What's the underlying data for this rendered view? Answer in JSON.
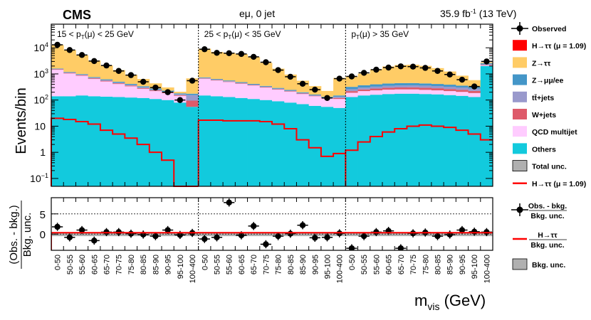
{
  "chart_data": {
    "type": "bar",
    "header": {
      "experiment": "CMS",
      "channel": "eμ, 0 jet",
      "lumi": "35.9 fb",
      "lumi_sup": "-1",
      "energy": "(13 TeV)"
    },
    "ylabel": "Events/bin",
    "ratio_ylabel_num": "(Obs. - bkg.)",
    "ratio_ylabel_den": "Bkg. unc.",
    "xlabel_main": "m",
    "xlabel_sub": "vis",
    "xlabel_unit": " (GeV)",
    "y_ticks": [
      {
        "value": 0.1,
        "label": "10",
        "sup": "−1"
      },
      {
        "value": 1,
        "label": "1",
        "sup": ""
      },
      {
        "value": 10,
        "label": "10",
        "sup": ""
      },
      {
        "value": 100,
        "label": "10",
        "sup": "2"
      },
      {
        "value": 1000,
        "label": "10",
        "sup": "3"
      },
      {
        "value": 10000,
        "label": "10",
        "sup": "4"
      }
    ],
    "ylim": [
      0.05,
      80000
    ],
    "ratio_ylim": [
      -4,
      9
    ],
    "ratio_ticks": [
      0,
      5
    ],
    "categories": [
      "0-50",
      "50-55",
      "55-60",
      "60-65",
      "65-70",
      "70-75",
      "75-80",
      "80-85",
      "85-90",
      "90-95",
      "95-100",
      "100-400"
    ],
    "regions": [
      {
        "label_pre": "15 < p",
        "label_sub": "T",
        "label_post": "(μ) < 25 GeV",
        "others": [
          140,
          140,
          150,
          140,
          135,
          130,
          125,
          120,
          110,
          100,
          80,
          55
        ],
        "qcd": [
          1300,
          900,
          700,
          500,
          380,
          280,
          210,
          150,
          110,
          85,
          65,
          0
        ],
        "wjets": [
          60,
          50,
          45,
          38,
          32,
          27,
          22,
          18,
          14,
          11,
          9,
          40
        ],
        "ttbar": [
          50,
          45,
          40,
          35,
          32,
          28,
          25,
          22,
          18,
          15,
          12,
          60
        ],
        "zmumu": [
          60,
          55,
          50,
          45,
          42,
          38,
          32,
          28,
          24,
          18,
          14,
          20
        ],
        "ztautau": [
          11000,
          7000,
          4200,
          2500,
          1500,
          900,
          520,
          300,
          160,
          75,
          28,
          500
        ],
        "signal": [
          20,
          18,
          15,
          12,
          7,
          5,
          3.5,
          2,
          1,
          0.5,
          0.05,
          0.05
        ],
        "observed": [
          13000,
          8200,
          5300,
          3100,
          2100,
          1300,
          900,
          500,
          300,
          200,
          100,
          550
        ],
        "ratio": [
          1.8,
          -0.8,
          1.0,
          -1.6,
          0.5,
          0.5,
          0.1,
          -0.1,
          -0.5,
          1.0,
          -0.2,
          0.3
        ]
      },
      {
        "label_pre": "25 < p",
        "label_sub": "T",
        "label_post": "(μ) < 35 GeV",
        "others": [
          150,
          140,
          130,
          120,
          110,
          100,
          90,
          80,
          70,
          60,
          55,
          50
        ],
        "qcd": [
          500,
          420,
          360,
          300,
          250,
          200,
          160,
          130,
          100,
          80,
          60,
          60
        ],
        "wjets": [
          25,
          22,
          20,
          18,
          15,
          13,
          11,
          9,
          8,
          6,
          5,
          10
        ],
        "ttbar": [
          25,
          22,
          20,
          18,
          15,
          13,
          11,
          9,
          8,
          6,
          5,
          15
        ],
        "zmumu": [
          40,
          35,
          32,
          28,
          25,
          22,
          19,
          16,
          13,
          10,
          8,
          15
        ],
        "ztautau": [
          8500,
          6300,
          5800,
          5200,
          4000,
          2300,
          1300,
          700,
          350,
          180,
          90,
          550
        ],
        "signal": [
          17,
          17,
          16,
          16,
          16,
          15,
          12,
          8,
          3,
          1.5,
          0.7,
          0.9
        ],
        "observed": [
          8800,
          6400,
          6200,
          5800,
          4500,
          2800,
          1400,
          780,
          420,
          250,
          120,
          660
        ],
        "ratio": [
          -1.2,
          -0.8,
          7.8,
          -0.3,
          2.0,
          -2.5,
          -0.5,
          0.1,
          2.2,
          -0.9,
          -0.8,
          0.2
        ]
      },
      {
        "label_pre": "p",
        "label_sub": "T",
        "label_post": "(μ) > 35 GeV",
        "others": [
          130,
          150,
          160,
          170,
          175,
          175,
          170,
          165,
          155,
          145,
          130,
          2000
        ],
        "qcd": [
          60,
          70,
          75,
          80,
          80,
          80,
          75,
          70,
          65,
          60,
          55,
          120
        ],
        "wjets": [
          30,
          35,
          40,
          45,
          48,
          50,
          50,
          48,
          45,
          42,
          38,
          80
        ],
        "ttbar": [
          40,
          45,
          50,
          55,
          60,
          62,
          62,
          60,
          58,
          55,
          50,
          200
        ],
        "zmumu": [
          60,
          70,
          75,
          80,
          82,
          80,
          75,
          70,
          65,
          55,
          45,
          150
        ],
        "ztautau": [
          450,
          650,
          1100,
          1500,
          1750,
          1800,
          1600,
          1250,
          850,
          500,
          260,
          200
        ],
        "signal": [
          1.2,
          2.5,
          4,
          6,
          8,
          10,
          11,
          10,
          9,
          7,
          5,
          3
        ],
        "observed": [
          800,
          1100,
          1450,
          1750,
          1950,
          1900,
          1700,
          1300,
          950,
          600,
          330,
          3000
        ],
        "ratio": [
          -3.5,
          -0.5,
          0.5,
          0.8,
          -3.5,
          0.2,
          0.4,
          -0.5,
          -0.1,
          1.0,
          0.6,
          0.5
        ]
      }
    ],
    "legend": [
      {
        "key": "observed",
        "label": "Observed",
        "kind": "marker",
        "color": "#000000"
      },
      {
        "key": "signal_fill",
        "label": "H→ττ (μ = 1.09)",
        "kind": "box",
        "color": "#ff0000"
      },
      {
        "key": "ztautau",
        "label": "Z→ττ",
        "kind": "box",
        "color": "#ffcc66"
      },
      {
        "key": "zmumu",
        "label": "Z→μμ/ee",
        "kind": "box",
        "color": "#4496c8"
      },
      {
        "key": "ttbar",
        "label": "tt̄+jets",
        "kind": "box",
        "color": "#9999cc"
      },
      {
        "key": "wjets",
        "label": "W+jets",
        "kind": "box",
        "color": "#de5a6a"
      },
      {
        "key": "qcd",
        "label": "QCD multijet",
        "kind": "box",
        "color": "#ffccff"
      },
      {
        "key": "others",
        "label": "Others",
        "kind": "box",
        "color": "#12cadd"
      },
      {
        "key": "unc",
        "label": "Total unc.",
        "kind": "box",
        "color": "#b0b0b0"
      },
      {
        "key": "signal_line",
        "label": "H→ττ (μ = 1.09)",
        "kind": "line",
        "color": "#ff0000"
      }
    ],
    "ratio_legend": [
      {
        "key": "obs_bkg",
        "label": "Obs. - bkg.",
        "sub": "Bkg. unc.",
        "kind": "marker"
      },
      {
        "key": "h_bkg",
        "label": "H→ττ",
        "sub": "Bkg. unc.",
        "kind": "line"
      },
      {
        "key": "bkg_unc",
        "label": "Bkg. unc.",
        "sub": "",
        "kind": "box"
      }
    ]
  }
}
